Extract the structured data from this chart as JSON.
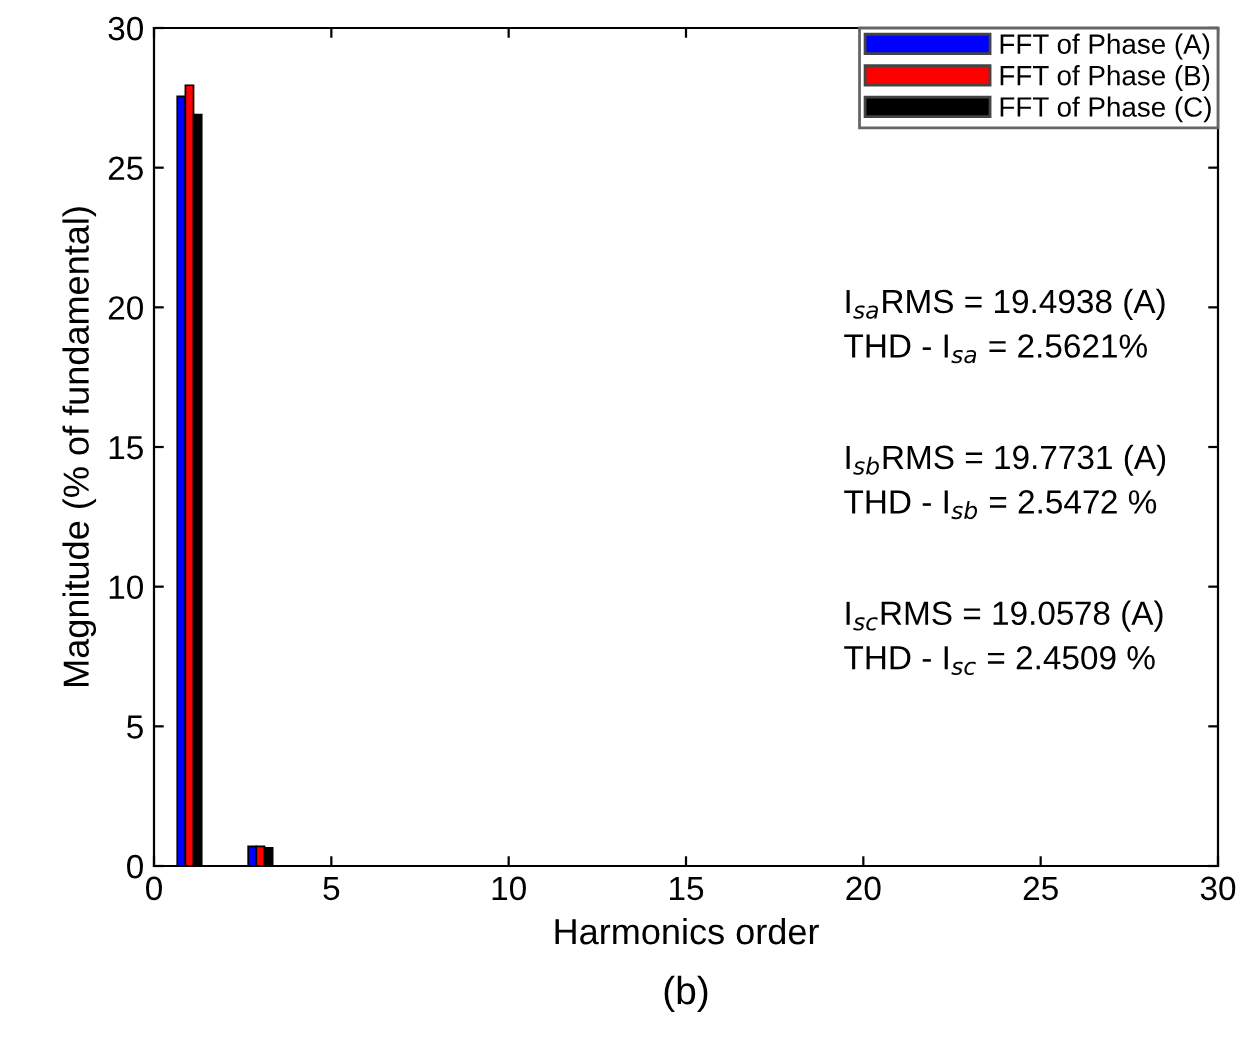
{
  "chart_data": {
    "type": "bar",
    "xlabel": "Harmonics order",
    "ylabel": "Magnitude (% of fundamental)",
    "x": [
      1,
      2,
      3,
      4,
      5,
      6,
      7,
      8,
      9,
      10,
      11,
      12,
      13,
      14,
      15,
      16,
      17,
      18,
      19,
      20,
      21,
      22,
      23,
      24,
      25,
      26,
      27,
      28,
      29,
      30
    ],
    "series": [
      {
        "name": "FFT of Phase (A)",
        "color": "#0000ff",
        "values": [
          27.55,
          0,
          0.7,
          0,
          0,
          0,
          0,
          0,
          0,
          0,
          0,
          0,
          0,
          0,
          0,
          0,
          0,
          0,
          0,
          0,
          0,
          0,
          0,
          0,
          0,
          0,
          0,
          0,
          0,
          0
        ]
      },
      {
        "name": "FFT of Phase (B)",
        "color": "#ff0000",
        "values": [
          27.95,
          0,
          0.7,
          0,
          0,
          0,
          0,
          0,
          0,
          0,
          0,
          0,
          0,
          0,
          0,
          0,
          0,
          0,
          0,
          0,
          0,
          0,
          0,
          0,
          0,
          0,
          0,
          0,
          0,
          0
        ]
      },
      {
        "name": "FFT of Phase (C)",
        "color": "#000000",
        "values": [
          26.9,
          0,
          0.65,
          0,
          0,
          0,
          0,
          0,
          0,
          0,
          0,
          0,
          0,
          0,
          0,
          0,
          0,
          0,
          0,
          0,
          0,
          0,
          0,
          0,
          0,
          0,
          0,
          0,
          0,
          0
        ]
      }
    ],
    "xlim": [
      0,
      30
    ],
    "xticks": [
      0,
      5,
      10,
      15,
      20,
      25,
      30
    ],
    "ylim": [
      0,
      30
    ],
    "yticks": [
      0,
      5,
      10,
      15,
      20,
      25,
      30
    ],
    "grid": false,
    "legend": "top right",
    "annotations": [
      "I$_{sa}$RMS = 19.4938 (A)",
      "THD - I$_{sa}$ = 2.5621%",
      "I$_{sb}$RMS = 19.7731 (A)",
      "THD - I$_{sb}$ = 2.5472 %",
      "I$_{sc}$RMS = 19.0578 (A)",
      "THD - I$_{sc}$ = 2.4509 %",
      "(b)"
    ]
  }
}
